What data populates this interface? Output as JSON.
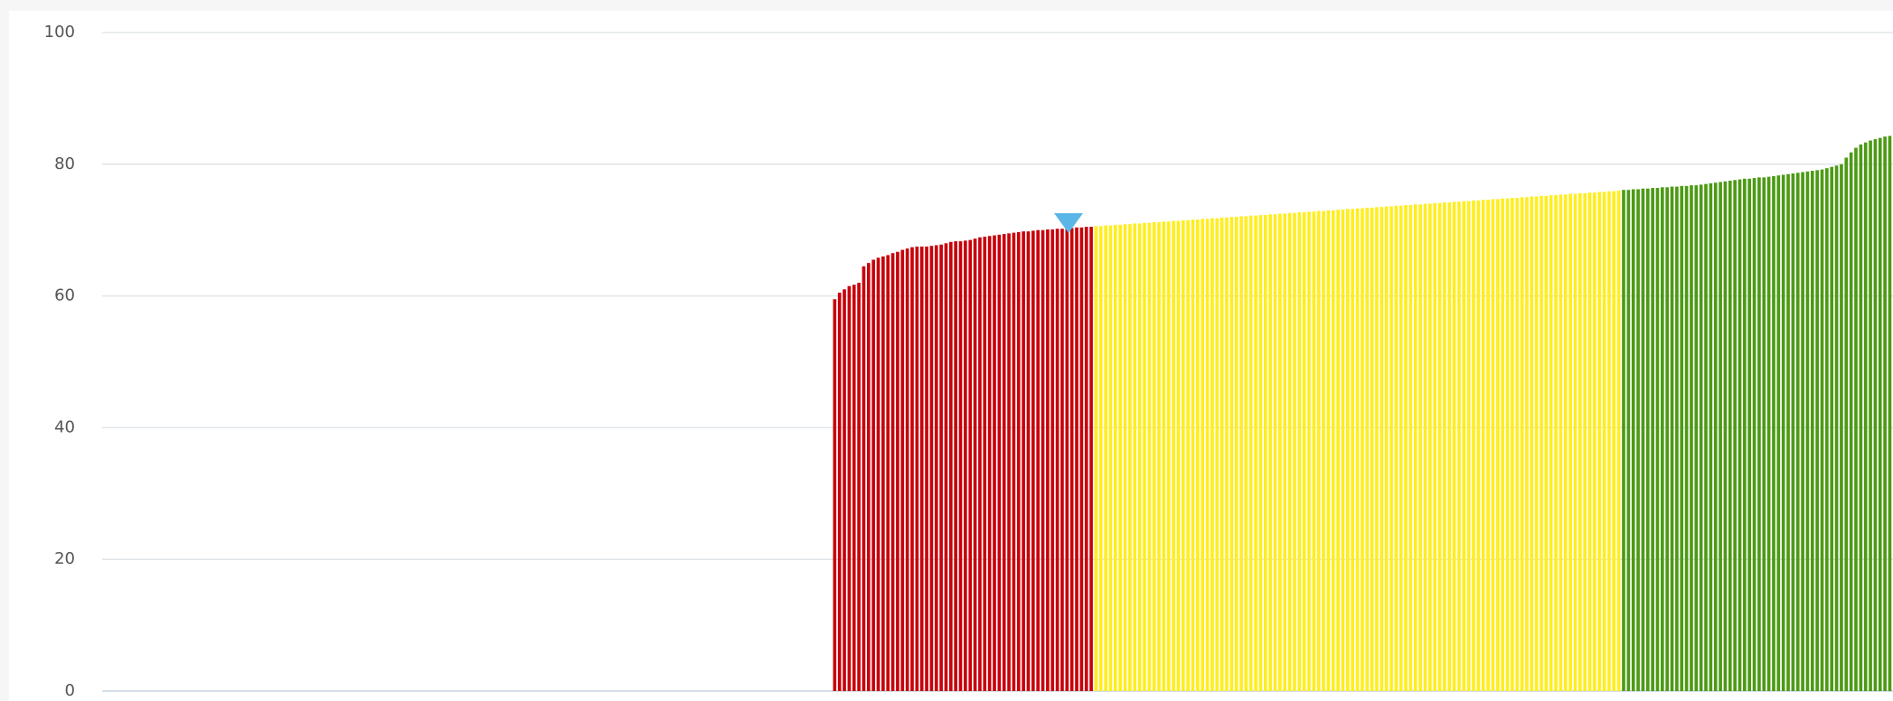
{
  "chart_data": {
    "type": "bar",
    "ylim": [
      0,
      100
    ],
    "yticks": [
      0,
      20,
      40,
      60,
      80,
      100
    ],
    "grid": true,
    "series": [
      {
        "color": "#c8000a",
        "values": [
          59.5,
          60.5,
          61,
          61.5,
          61.7,
          62,
          64.5,
          65,
          65.5,
          65.8,
          66,
          66.2,
          66.5,
          66.7,
          67,
          67.2,
          67.4,
          67.5,
          67.5,
          67.5,
          67.6,
          67.7,
          67.8,
          68,
          68.2,
          68.3,
          68.3,
          68.4,
          68.5,
          68.7,
          68.9,
          69,
          69.1,
          69.2,
          69.3,
          69.4,
          69.5,
          69.6,
          69.7,
          69.8,
          69.8,
          69.9,
          70,
          70,
          70.1,
          70.1,
          70.2,
          70.2,
          70.3,
          70.3,
          70.4,
          70.4,
          70.5,
          70.5
        ]
      },
      {
        "color": "#ffee1e",
        "values": [
          70.6,
          70.6,
          70.7,
          70.7,
          70.8,
          70.8,
          70.9,
          70.9,
          71,
          71,
          71.1,
          71.1,
          71.2,
          71.2,
          71.3,
          71.3,
          71.4,
          71.4,
          71.5,
          71.5,
          71.6,
          71.6,
          71.7,
          71.7,
          71.8,
          71.8,
          71.9,
          71.9,
          72,
          72,
          72.1,
          72.1,
          72.2,
          72.2,
          72.3,
          72.3,
          72.4,
          72.4,
          72.5,
          72.5,
          72.6,
          72.6,
          72.7,
          72.7,
          72.8,
          72.8,
          72.9,
          72.9,
          73,
          73,
          73.1,
          73.1,
          73.2,
          73.2,
          73.3,
          73.3,
          73.4,
          73.4,
          73.5,
          73.5,
          73.6,
          73.6,
          73.7,
          73.7,
          73.8,
          73.8,
          73.9,
          73.9,
          74,
          74,
          74.1,
          74.1,
          74.2,
          74.2,
          74.3,
          74.3,
          74.4,
          74.4,
          74.5,
          74.5,
          74.6,
          74.6,
          74.7,
          74.7,
          74.8,
          74.8,
          74.9,
          74.9,
          75,
          75,
          75.1,
          75.1,
          75.2,
          75.2,
          75.3,
          75.3,
          75.4,
          75.4,
          75.5,
          75.5,
          75.6,
          75.6,
          75.7,
          75.7,
          75.8,
          75.8,
          75.9,
          75.9,
          76
        ]
      },
      {
        "color": "#4c9a14",
        "values": [
          76.1,
          76.1,
          76.2,
          76.2,
          76.3,
          76.3,
          76.4,
          76.4,
          76.5,
          76.5,
          76.6,
          76.6,
          76.7,
          76.7,
          76.8,
          76.8,
          76.9,
          77,
          77.1,
          77.2,
          77.3,
          77.4,
          77.5,
          77.6,
          77.7,
          77.8,
          77.8,
          77.9,
          78,
          78,
          78.1,
          78.2,
          78.3,
          78.4,
          78.5,
          78.6,
          78.7,
          78.8,
          78.9,
          79,
          79.1,
          79.2,
          79.4,
          79.6,
          79.8,
          80,
          81,
          81.8,
          82.5,
          83,
          83.3,
          83.6,
          83.8,
          84,
          84.2,
          84.3
        ]
      }
    ]
  }
}
